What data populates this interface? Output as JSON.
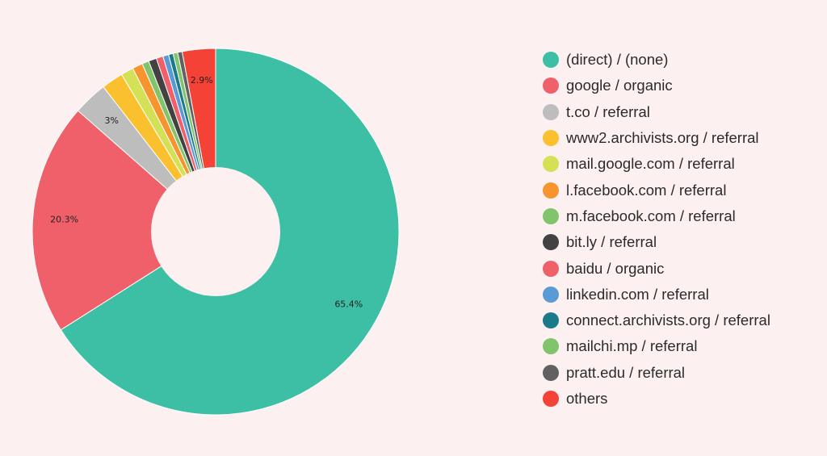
{
  "chart_data": {
    "type": "pie",
    "donut": true,
    "title": "",
    "legend_position": "right",
    "slices": [
      {
        "label": "(direct) / (none)",
        "value": 65.4,
        "color": "#3dbfa6",
        "data_label": "65.4%"
      },
      {
        "label": "google / organic",
        "value": 20.3,
        "color": "#f0606a",
        "data_label": "20.3%"
      },
      {
        "label": "t.co / referral",
        "value": 3.0,
        "color": "#bdbdbd",
        "data_label": "3%"
      },
      {
        "label": "www2.archivists.org / referral",
        "value": 1.9,
        "color": "#fbc02d",
        "data_label": ""
      },
      {
        "label": "mail.google.com / referral",
        "value": 1.1,
        "color": "#d4e157",
        "data_label": ""
      },
      {
        "label": "l.facebook.com / referral",
        "value": 0.9,
        "color": "#f7942d",
        "data_label": ""
      },
      {
        "label": "m.facebook.com / referral",
        "value": 0.6,
        "color": "#81c46b",
        "data_label": ""
      },
      {
        "label": "bit.ly / referral",
        "value": 0.7,
        "color": "#424242",
        "data_label": ""
      },
      {
        "label": "baidu / organic",
        "value": 0.6,
        "color": "#f0606a",
        "data_label": ""
      },
      {
        "label": "linkedin.com / referral",
        "value": 0.5,
        "color": "#5b9bd5",
        "data_label": ""
      },
      {
        "label": "connect.archivists.org / referral",
        "value": 0.4,
        "color": "#1b7a8a",
        "data_label": ""
      },
      {
        "label": "mailchi.mp / referral",
        "value": 0.4,
        "color": "#81c46b",
        "data_label": ""
      },
      {
        "label": "pratt.edu / referral",
        "value": 0.4,
        "color": "#616161",
        "data_label": ""
      },
      {
        "label": "others",
        "value": 2.9,
        "color": "#f44336",
        "data_label": "2.9%"
      }
    ]
  }
}
